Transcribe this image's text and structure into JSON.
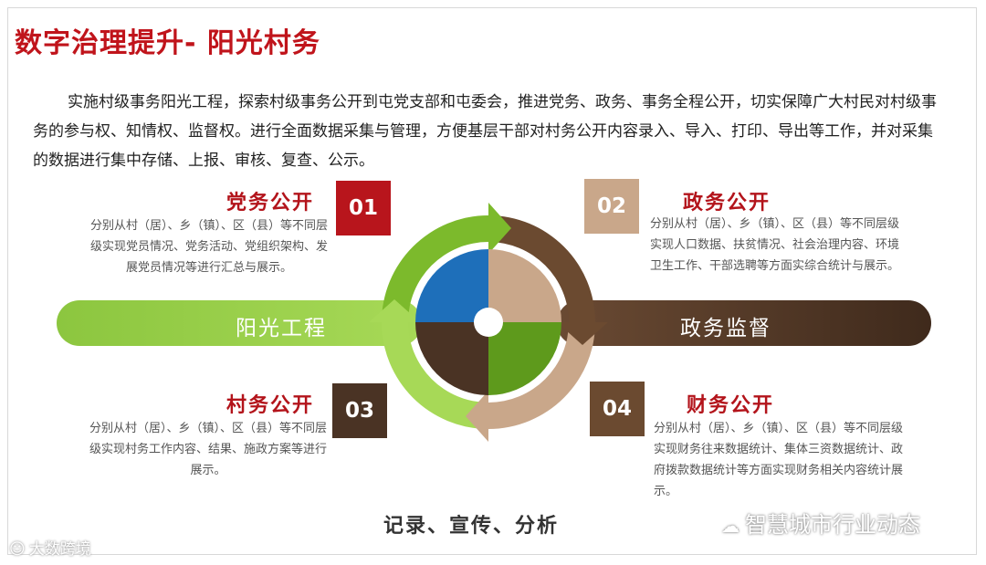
{
  "title": "数字治理提升- 阳光村务",
  "intro": "实施村级事务阳光工程，探索村级事务公开到屯党支部和屯委会，推进党务、政务、事务全程公开，切实保障广大村民对村级事务的参与权、知情权、监督权。进行全面数据采集与管理，方便基层干部对村务公开内容录入、导入、打印、导出等工作，并对采集的数据进行集中存储、上报、审核、复查、公示。",
  "arrows": {
    "left_label": "阳光工程",
    "right_label": "政务监督"
  },
  "sections": [
    {
      "num": "01",
      "title": "党务公开",
      "desc": "分别从村（居）、乡（镇）、区（县）等不同层级实现党员情况、党务活动、党组织架构、发展党员情况等进行汇总与展示。",
      "color": "#b8151c"
    },
    {
      "num": "02",
      "title": "政务公开",
      "desc": "分别从村（居）、乡（镇）、区（县）等不同层级实现人口数据、扶贫情况、社会治理内容、环境卫生工作、干部选聘等方面实综合统计与展示。",
      "color": "#c9a78a"
    },
    {
      "num": "03",
      "title": "村务公开",
      "desc": "分别从村（居）、乡（镇）、区（县）等不同层级实现村务工作内容、结果、施政方案等进行展示。",
      "color": "#4a3324"
    },
    {
      "num": "04",
      "title": "财务公开",
      "desc": "分别从村（居）、乡（镇）、区（县）等不同层级实现财务往来数据统计、集体三资数据统计、政府拨款数据统计等方面实现财务相关内容统计展示。",
      "color": "#6b4a30"
    }
  ],
  "bottom_caption": "记录、宣传、分析",
  "watermarks": {
    "right": "智慧城市行业动态",
    "left": "大数跨境"
  },
  "colors": {
    "title_red": "#c0141b",
    "green_light": "#9fd34a",
    "green_mid": "#7cba2c",
    "green_dark": "#5e9a1c",
    "blue": "#1e6fba",
    "brown_dark": "#4a3324",
    "brown_mid": "#6b4a30",
    "tan": "#c9a78a"
  }
}
